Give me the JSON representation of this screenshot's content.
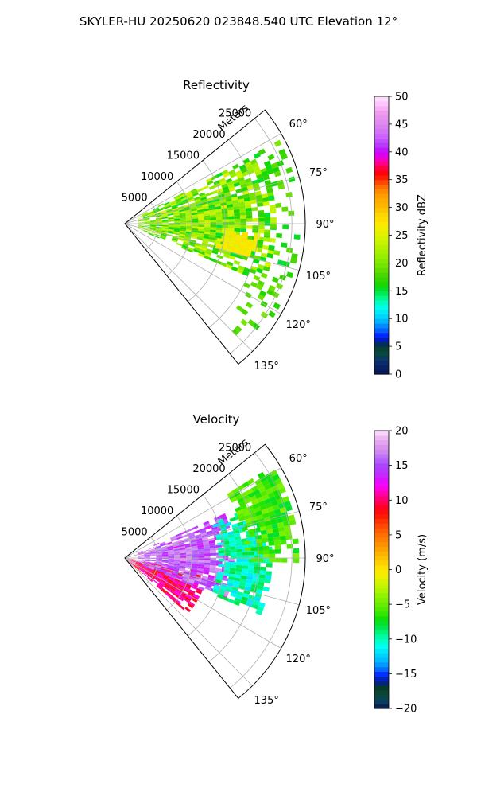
{
  "figure": {
    "title": "SKYLER-HU  20250620  023848.540 UTC Elevation 12°"
  },
  "chart_data": [
    {
      "type": "polar-sector",
      "title": "Reflectivity",
      "radial_label": "Meters",
      "radial_ticks": [
        5000,
        10000,
        15000,
        20000,
        25000
      ],
      "radial_tick_labels": [
        "5000",
        "10000",
        "15000",
        "20000",
        "25000"
      ],
      "r_max": 27000,
      "azimuth_range_deg": [
        51,
        141
      ],
      "angle_ticks": [
        "60°",
        "75°",
        "90°",
        "105°",
        "120°",
        "135°"
      ],
      "grid": true,
      "colorbar": {
        "label": "Reflectivity dBZ",
        "min": 0,
        "max": 50,
        "ticks": [
          0,
          5,
          10,
          15,
          20,
          25,
          30,
          35,
          40,
          45,
          50
        ]
      },
      "regions": [
        {
          "description": "main echo",
          "r_range": [
            2000,
            22000
          ],
          "az_range": [
            62,
            112
          ],
          "value_range": [
            15,
            25
          ]
        },
        {
          "description": "strongest core",
          "r_range": [
            14000,
            20000
          ],
          "az_range": [
            94,
            104
          ],
          "value_range": [
            25,
            28
          ]
        },
        {
          "description": "scattered outer echoes",
          "r_range": [
            20000,
            26000
          ],
          "az_range": [
            60,
            135
          ],
          "value_range": [
            15,
            20
          ]
        }
      ]
    },
    {
      "type": "polar-sector",
      "title": "Velocity",
      "radial_label": "Meters",
      "radial_ticks": [
        5000,
        10000,
        15000,
        20000,
        25000
      ],
      "radial_tick_labels": [
        "5000",
        "10000",
        "15000",
        "20000",
        "25000"
      ],
      "r_max": 27000,
      "azimuth_range_deg": [
        51,
        141
      ],
      "angle_ticks": [
        "60°",
        "75°",
        "90°",
        "105°",
        "120°",
        "135°"
      ],
      "grid": true,
      "colorbar": {
        "label": "Velocity (m/s)",
        "min": -20,
        "max": 20,
        "ticks": [
          -20,
          -15,
          -10,
          -5,
          0,
          5,
          10,
          15,
          20
        ]
      },
      "regions": [
        {
          "description": "receding near-radar",
          "r_range": [
            0,
            12000
          ],
          "az_range": [
            98,
            130
          ],
          "value_range": [
            8,
            12
          ]
        },
        {
          "description": "receding purple band",
          "r_range": [
            2000,
            16000
          ],
          "az_range": [
            66,
            112
          ],
          "value_range": [
            13,
            18
          ]
        },
        {
          "description": "approaching cyan region",
          "r_range": [
            14000,
            22000
          ],
          "az_range": [
            68,
            112
          ],
          "value_range": [
            -12,
            -8
          ]
        },
        {
          "description": "approaching green outer",
          "r_range": [
            18000,
            26000
          ],
          "az_range": [
            58,
            90
          ],
          "value_range": [
            -8,
            -4
          ]
        }
      ]
    }
  ]
}
